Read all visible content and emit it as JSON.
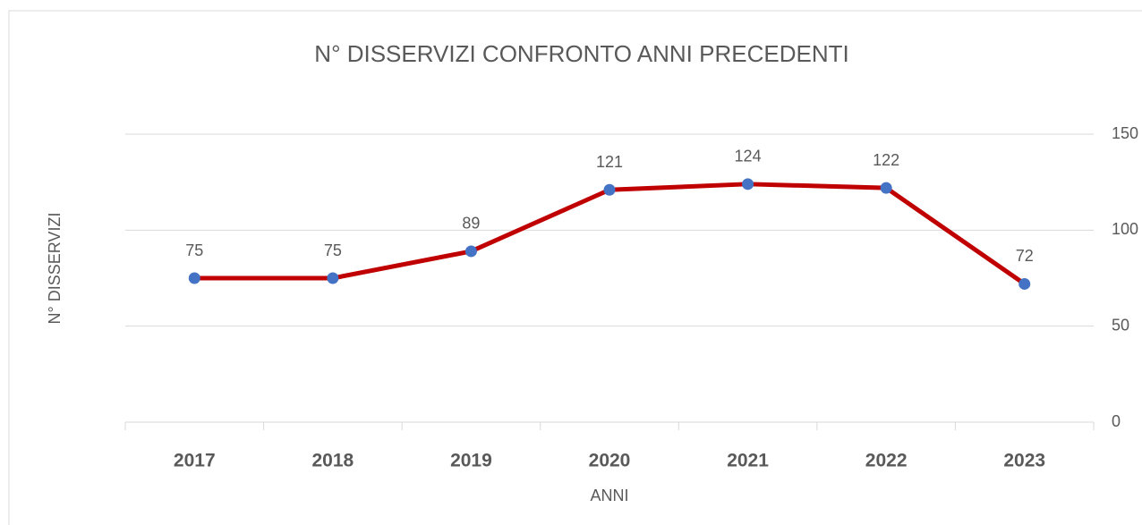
{
  "chart_data": {
    "type": "line",
    "title": "N° DISSERVIZI CONFRONTO ANNI PRECEDENTI",
    "x_label": "ANNI",
    "y_label": "N° DISSERVIZI",
    "categories": [
      "2017",
      "2018",
      "2019",
      "2020",
      "2021",
      "2022",
      "2023"
    ],
    "series": [
      {
        "name": "N° DISSERVIZI",
        "color": "#c00000",
        "marker_color": "#4472c4",
        "values": [
          75,
          75,
          89,
          121,
          124,
          122,
          72
        ]
      }
    ],
    "ylim": [
      0,
      150
    ],
    "yticks": [
      0,
      50,
      100,
      150
    ],
    "grid": true,
    "y_axis_side": "right"
  }
}
